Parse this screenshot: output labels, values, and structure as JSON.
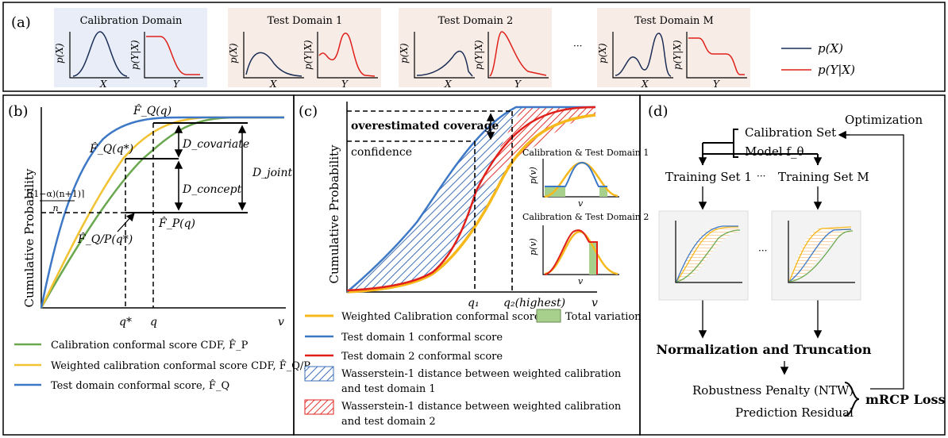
{
  "panel_a": {
    "label": "(a)",
    "calib_title": "Calibration Domain",
    "test1_title": "Test Domain 1",
    "test2_title": "Test Domain 2",
    "testm_title": "Test Domain M",
    "ellipsis": "···",
    "px_label": "p(X)",
    "pyx_label": "p(Y|X)",
    "x_label": "X",
    "y_label": "Y",
    "legend_px": "p(X)",
    "legend_pyx": "p(Y|X)"
  },
  "panel_b": {
    "label": "(b)",
    "ylabel": "Cumulative Probability",
    "fq": "F̂_Q(q)",
    "fqstar": "F̂_Q(q*)",
    "fqp": "F̂_Q/P(q*)",
    "fp": "F̂_P(q)",
    "d_cov": "D_covariate",
    "d_con": "D_concept",
    "d_joint": "D_joint",
    "level_num": "⌈(1−α)(n+1)⌉",
    "level_den": "n",
    "qstar": "q*",
    "q": "q",
    "v": "v",
    "legend": [
      {
        "text": "Calibration conformal score CDF, F̂_P",
        "color": "#6aa84f"
      },
      {
        "text": "Weighted calibration conformal score CDF, F̂_Q/P",
        "color": "#f1c232"
      },
      {
        "text": "Test domain conformal score, F̂_Q",
        "color": "#3d78c7"
      }
    ]
  },
  "panel_c": {
    "label": "(c)",
    "ylabel": "Cumulative Probability",
    "overestimated": "overestimated coverage",
    "confidence": "confidence",
    "inset1_title": "Calibration & Test Domain 1",
    "inset2_title": "Calibration & Test Domain 2",
    "pv": "p(v)",
    "v": "v",
    "q1": "q₁",
    "q2": "q₂(highest)",
    "legend": {
      "weighted": "Weighted Calibration conformal score",
      "total_variation": "Total variation",
      "test1": "Test domain 1 conformal score",
      "test2": "Test domain 2 conformal score",
      "w1_line1": "Wasserstein-1 distance between  weighted calibration",
      "w1_line2": "and test domain 1",
      "w2_line1": "Wasserstein-1 distance between weighted calibration",
      "w2_line2": "and test domain 2"
    },
    "colors": {
      "yellow": "#f6b81a",
      "blue": "#3d78c7",
      "red": "#e0201a",
      "green": "#a8d08d"
    }
  },
  "panel_d": {
    "label": "(d)",
    "calibration_set": "Calibration Set",
    "model": "Model f_θ",
    "optimization": "Optimization",
    "training1": "Training Set 1",
    "trainingm": "Training Set M",
    "ellipsis": "···",
    "normalization": "Normalization and Truncation",
    "robustness": "Robustness Penalty (NTW)",
    "residual": "Prediction Residual",
    "loss": "mRCP Loss"
  }
}
